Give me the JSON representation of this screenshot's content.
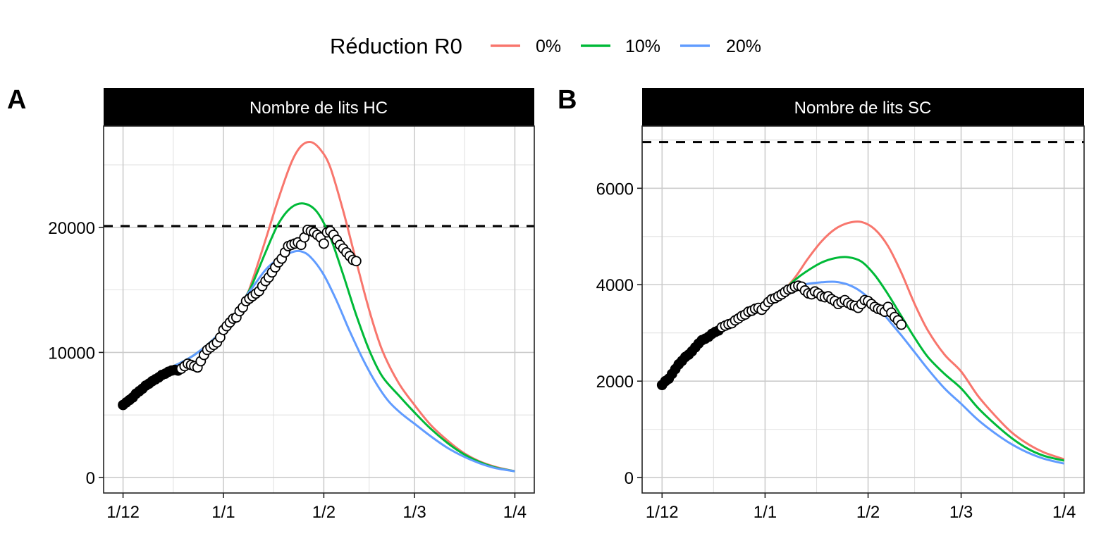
{
  "chart_data": {
    "type": "line",
    "legend": {
      "title": "Réduction R0",
      "placement": "top-center",
      "entries": [
        {
          "label": "0%",
          "color": "#F8766D"
        },
        {
          "label": "10%",
          "color": "#00BA38"
        },
        {
          "label": "20%",
          "color": "#619CFF"
        }
      ]
    },
    "x_axis": {
      "unit": "days since 1/12",
      "range": [
        -6,
        127
      ],
      "ticks": [
        {
          "label": "1/12",
          "day": 0
        },
        {
          "label": "1/1",
          "day": 31
        },
        {
          "label": "1/2",
          "day": 62
        },
        {
          "label": "1/3",
          "day": 90
        },
        {
          "label": "1/4",
          "day": 121
        }
      ]
    },
    "panels": [
      {
        "tag": "A",
        "title": "Nombre de lits HC",
        "ylim": [
          -1240,
          28100
        ],
        "y_ticks": [
          0,
          10000,
          20000
        ],
        "y_minor": [
          5000,
          15000,
          25000
        ],
        "capacity_line": 20100,
        "series": [
          {
            "name": "0%",
            "days": [
              0,
              3,
              6,
              10,
              14,
              18,
              22,
              26,
              30,
              34,
              38,
              40,
              44,
              48,
              52,
              55,
              58,
              61,
              64,
              68,
              72,
              76,
              80,
              85,
              90,
              95,
              100,
              105,
              110,
              115,
              121
            ],
            "values": [
              5800,
              6500,
              7200,
              8000,
              8700,
              9200,
              9800,
              10600,
              11600,
              12900,
              14500,
              15800,
              19000,
              22300,
              25200,
              26500,
              26820,
              26200,
              24800,
              21300,
              17300,
              13400,
              10200,
              7600,
              5800,
              4200,
              3000,
              2000,
              1300,
              850,
              500
            ]
          },
          {
            "name": "10%",
            "days": [
              0,
              3,
              6,
              10,
              14,
              18,
              22,
              26,
              30,
              34,
              38,
              40,
              44,
              48,
              52,
              56,
              60,
              64,
              68,
              72,
              76,
              80,
              85,
              90,
              95,
              100,
              105,
              110,
              115,
              121
            ],
            "values": [
              5800,
              6500,
              7200,
              8000,
              8700,
              9200,
              9800,
              10600,
              11600,
              12900,
              14500,
              15500,
              18000,
              20300,
              21600,
              21900,
              21200,
              19200,
              16200,
              13000,
              10200,
              8100,
              6600,
              5200,
              3900,
              2800,
              1900,
              1250,
              800,
              500
            ]
          },
          {
            "name": "20%",
            "days": [
              0,
              3,
              6,
              10,
              14,
              18,
              22,
              26,
              30,
              34,
              38,
              40,
              44,
              48,
              52,
              55,
              58,
              62,
              66,
              70,
              74,
              78,
              82,
              86,
              90,
              95,
              100,
              105,
              110,
              115,
              121
            ],
            "values": [
              5800,
              6500,
              7200,
              8000,
              8700,
              9200,
              9800,
              10600,
              11600,
              12900,
              14500,
              15200,
              16600,
              17500,
              18000,
              18080,
              17600,
              16200,
              14100,
              11700,
              9500,
              7600,
              6100,
              5100,
              4300,
              3300,
              2400,
              1700,
              1150,
              750,
              500
            ]
          }
        ],
        "observed": {
          "filled_until_day": 17,
          "start_day": 0,
          "values": [
            5800,
            6000,
            6200,
            6400,
            6700,
            6900,
            7100,
            7350,
            7500,
            7700,
            7850,
            8000,
            8200,
            8300,
            8450,
            8550,
            8600,
            8550,
            8700,
            8900,
            9100,
            9000,
            8900,
            8800,
            9300,
            9800,
            10200,
            10400,
            10600,
            10800,
            11200,
            11800,
            12100,
            12400,
            12700,
            12800,
            13300,
            13600,
            14100,
            14300,
            14500,
            14700,
            14900,
            15300,
            15700,
            16000,
            16400,
            16800,
            17200,
            17500,
            18000,
            18500,
            18600,
            18700,
            18800,
            18600,
            19200,
            19800,
            19700,
            19600,
            19400,
            19200,
            18700,
            19600,
            19700,
            19400,
            19000,
            18600,
            18300,
            18000,
            17700,
            17400,
            17300
          ]
        }
      },
      {
        "tag": "B",
        "title": "Nombre de lits SC",
        "ylim": [
          -320,
          7290
        ],
        "y_ticks": [
          0,
          2000,
          4000,
          6000
        ],
        "y_minor": [
          1000,
          3000,
          5000,
          7000
        ],
        "capacity_line": 6960,
        "series": [
          {
            "name": "0%",
            "days": [
              0,
              4,
              8,
              12,
              16,
              20,
              24,
              28,
              32,
              36,
              40,
              44,
              48,
              52,
              56,
              60,
              64,
              68,
              72,
              76,
              80,
              85,
              90,
              95,
              100,
              105,
              110,
              115,
              121
            ],
            "values": [
              1920,
              2300,
              2650,
              2900,
              3100,
              3250,
              3400,
              3530,
              3680,
              3850,
              4150,
              4550,
              4900,
              5150,
              5280,
              5300,
              5150,
              4800,
              4250,
              3600,
              3050,
              2550,
              2200,
              1700,
              1300,
              950,
              700,
              520,
              380
            ]
          },
          {
            "name": "10%",
            "days": [
              0,
              4,
              8,
              12,
              16,
              20,
              24,
              28,
              32,
              36,
              40,
              44,
              48,
              52,
              56,
              60,
              64,
              68,
              72,
              76,
              80,
              85,
              90,
              95,
              100,
              105,
              110,
              115,
              121
            ],
            "values": [
              1920,
              2300,
              2650,
              2900,
              3100,
              3250,
              3400,
              3530,
              3680,
              3850,
              4100,
              4300,
              4460,
              4550,
              4570,
              4480,
              4200,
              3800,
              3350,
              2900,
              2500,
              2150,
              1850,
              1450,
              1120,
              830,
              600,
              450,
              350
            ]
          },
          {
            "name": "20%",
            "days": [
              0,
              4,
              8,
              12,
              16,
              20,
              24,
              28,
              32,
              36,
              40,
              44,
              48,
              52,
              56,
              60,
              64,
              68,
              72,
              76,
              80,
              85,
              90,
              95,
              100,
              105,
              110,
              115,
              121
            ],
            "values": [
              1920,
              2300,
              2650,
              2900,
              3100,
              3250,
              3400,
              3530,
              3680,
              3850,
              3950,
              4020,
              4050,
              4060,
              4000,
              3850,
              3600,
              3280,
              2950,
              2600,
              2250,
              1850,
              1530,
              1200,
              930,
              700,
              520,
              390,
              290
            ]
          }
        ],
        "observed": {
          "filled_until_day": 17,
          "start_day": 0,
          "values": [
            1920,
            2000,
            2050,
            2150,
            2250,
            2350,
            2420,
            2500,
            2550,
            2620,
            2700,
            2780,
            2850,
            2880,
            2920,
            2980,
            3020,
            3050,
            3120,
            3150,
            3180,
            3200,
            3260,
            3300,
            3350,
            3380,
            3440,
            3460,
            3500,
            3520,
            3480,
            3560,
            3640,
            3700,
            3720,
            3760,
            3800,
            3850,
            3900,
            3920,
            3960,
            3980,
            3960,
            3880,
            3820,
            3800,
            3860,
            3820,
            3760,
            3740,
            3760,
            3700,
            3660,
            3600,
            3640,
            3680,
            3620,
            3580,
            3560,
            3520,
            3600,
            3680,
            3660,
            3600,
            3540,
            3500,
            3480,
            3440,
            3540,
            3420,
            3330,
            3260,
            3170
          ]
        }
      }
    ]
  }
}
